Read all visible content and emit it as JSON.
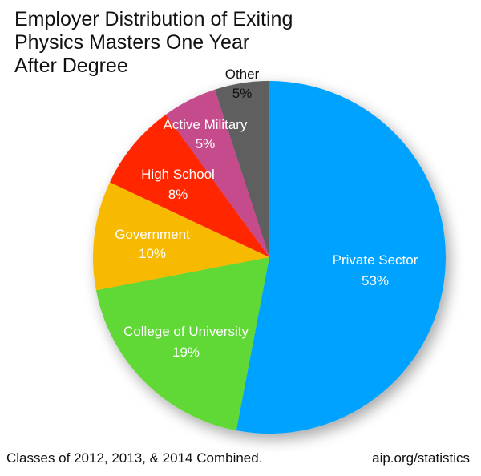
{
  "chart_data": {
    "type": "pie",
    "title": "Employer Distribution of Exiting Physics Masters One Year After Degree",
    "categories": [
      "Private Sector",
      "College of University",
      "Government",
      "High School",
      "Active Military",
      "Other"
    ],
    "values": [
      53,
      19,
      10,
      8,
      5,
      5
    ],
    "units": "%",
    "colors": [
      "#00A2FF",
      "#61D836",
      "#F8BA00",
      "#FF2600",
      "#C54B8C",
      "#5E5E5E"
    ],
    "start_angle": "12 o'clock, clockwise",
    "legend": "none (labels on slices)",
    "footnote": "Classes of 2012, 2013, & 2014 Combined.",
    "source": "aip.org/statistics"
  },
  "title": "Employer Distribution of Exiting\nPhysics Masters One Year\nAfter Degree",
  "slices": [
    {
      "name": "Private Sector",
      "pct": "53%"
    },
    {
      "name": "College of University",
      "pct": "19%"
    },
    {
      "name": "Government",
      "pct": "10%"
    },
    {
      "name": "High School",
      "pct": "8%"
    },
    {
      "name": "Active Military",
      "pct": "5%"
    },
    {
      "name": "Other",
      "pct": "5%"
    }
  ],
  "footer": {
    "note": "Classes of 2012, 2013, & 2014 Combined.",
    "source": "aip.org/statistics"
  }
}
